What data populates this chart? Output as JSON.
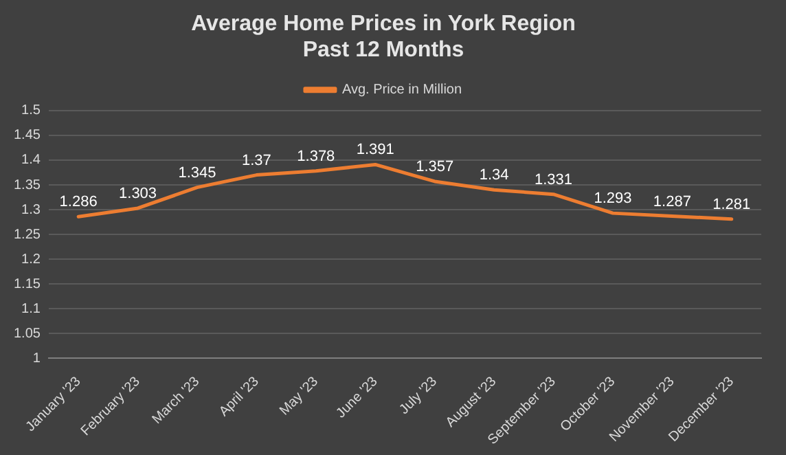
{
  "chart_data": {
    "type": "line",
    "title": "Average Home Prices in York Region\nPast 12 Months",
    "categories": [
      "January '23",
      "February '23",
      "March '23",
      "April '23",
      "May '23",
      "June '23",
      "July '23",
      "August '23",
      "September '23",
      "October '23",
      "November '23",
      "December '23"
    ],
    "series": [
      {
        "name": "Avg. Price in Million",
        "color": "#ed7d31",
        "values": [
          1.286,
          1.303,
          1.345,
          1.37,
          1.378,
          1.391,
          1.357,
          1.34,
          1.331,
          1.293,
          1.287,
          1.281
        ]
      }
    ],
    "ylim": [
      1,
      1.5
    ],
    "yticks": [
      1,
      1.05,
      1.1,
      1.15,
      1.2,
      1.25,
      1.3,
      1.35,
      1.4,
      1.45,
      1.5
    ],
    "grid": "y",
    "legend": "top",
    "marker": "none",
    "line_style": "solid",
    "data_labels": true
  }
}
